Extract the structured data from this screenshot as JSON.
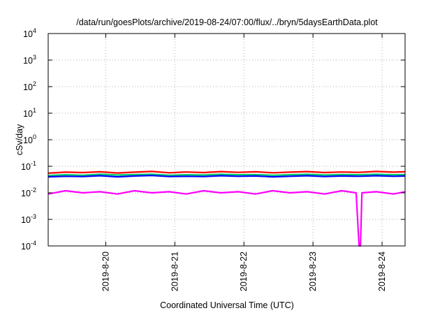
{
  "chart_data": {
    "type": "line",
    "title": "/data/run/goesPlots/archive/2019-08-24/07:00/flux/../bryn/5daysEarthData.plot",
    "xlabel": "Coordinated Universal Time (UTC)",
    "ylabel": "cSv/day",
    "yscale": "log",
    "ylim": [
      0.0001,
      10000
    ],
    "xlim": [
      "2019-08-19T04:00",
      "2019-08-24T08:00"
    ],
    "grid": true,
    "legend": "none",
    "y_ticks": [
      {
        "value": 0.0001,
        "base": "10",
        "exp": "-4"
      },
      {
        "value": 0.001,
        "base": "10",
        "exp": "-3"
      },
      {
        "value": 0.01,
        "base": "10",
        "exp": "-2"
      },
      {
        "value": 0.1,
        "base": "10",
        "exp": "-1"
      },
      {
        "value": 1,
        "base": "10",
        "exp": "0"
      },
      {
        "value": 10,
        "base": "10",
        "exp": "1"
      },
      {
        "value": 100,
        "base": "10",
        "exp": "2"
      },
      {
        "value": 1000,
        "base": "10",
        "exp": "3"
      },
      {
        "value": 10000,
        "base": "10",
        "exp": "4"
      }
    ],
    "x_ticks": [
      {
        "value": "2019-08-20T00:00",
        "label": "2019-8-20"
      },
      {
        "value": "2019-08-21T00:00",
        "label": "2019-8-21"
      },
      {
        "value": "2019-08-22T00:00",
        "label": "2019-8-22"
      },
      {
        "value": "2019-08-23T00:00",
        "label": "2019-8-23"
      },
      {
        "value": "2019-08-24T00:00",
        "label": "2019-8-24"
      }
    ],
    "series": [
      {
        "color": "#ff0000",
        "values": [
          [
            "2019-08-19T04:00",
            0.055
          ],
          [
            "2019-08-19T10:00",
            0.06
          ],
          [
            "2019-08-19T16:00",
            0.058
          ],
          [
            "2019-08-19T22:00",
            0.062
          ],
          [
            "2019-08-20T04:00",
            0.056
          ],
          [
            "2019-08-20T10:00",
            0.06
          ],
          [
            "2019-08-20T16:00",
            0.064
          ],
          [
            "2019-08-20T22:00",
            0.057
          ],
          [
            "2019-08-21T04:00",
            0.061
          ],
          [
            "2019-08-21T10:00",
            0.058
          ],
          [
            "2019-08-21T16:00",
            0.063
          ],
          [
            "2019-08-21T22:00",
            0.059
          ],
          [
            "2019-08-22T04:00",
            0.062
          ],
          [
            "2019-08-22T10:00",
            0.057
          ],
          [
            "2019-08-22T16:00",
            0.06
          ],
          [
            "2019-08-22T22:00",
            0.063
          ],
          [
            "2019-08-23T04:00",
            0.058
          ],
          [
            "2019-08-23T10:00",
            0.061
          ],
          [
            "2019-08-23T16:00",
            0.059
          ],
          [
            "2019-08-23T22:00",
            0.064
          ],
          [
            "2019-08-24T04:00",
            0.06
          ],
          [
            "2019-08-24T08:00",
            0.062
          ]
        ]
      },
      {
        "color": "#00cc66",
        "values": [
          [
            "2019-08-19T04:00",
            0.045
          ],
          [
            "2019-08-19T10:00",
            0.048
          ],
          [
            "2019-08-19T16:00",
            0.046
          ],
          [
            "2019-08-19T22:00",
            0.05
          ],
          [
            "2019-08-20T04:00",
            0.047
          ],
          [
            "2019-08-20T10:00",
            0.049
          ],
          [
            "2019-08-20T16:00",
            0.05
          ],
          [
            "2019-08-20T22:00",
            0.046
          ],
          [
            "2019-08-21T04:00",
            0.048
          ],
          [
            "2019-08-21T10:00",
            0.047
          ],
          [
            "2019-08-21T16:00",
            0.05
          ],
          [
            "2019-08-21T22:00",
            0.048
          ],
          [
            "2019-08-22T04:00",
            0.049
          ],
          [
            "2019-08-22T10:00",
            0.046
          ],
          [
            "2019-08-22T16:00",
            0.048
          ],
          [
            "2019-08-22T22:00",
            0.05
          ],
          [
            "2019-08-23T04:00",
            0.047
          ],
          [
            "2019-08-23T10:00",
            0.049
          ],
          [
            "2019-08-23T16:00",
            0.048
          ],
          [
            "2019-08-23T22:00",
            0.05
          ],
          [
            "2019-08-24T04:00",
            0.048
          ],
          [
            "2019-08-24T08:00",
            0.049
          ]
        ]
      },
      {
        "color": "#0000ff",
        "values": [
          [
            "2019-08-19T04:00",
            0.04
          ],
          [
            "2019-08-19T10:00",
            0.042
          ],
          [
            "2019-08-19T16:00",
            0.041
          ],
          [
            "2019-08-19T22:00",
            0.044
          ],
          [
            "2019-08-20T04:00",
            0.04
          ],
          [
            "2019-08-20T10:00",
            0.043
          ],
          [
            "2019-08-20T16:00",
            0.045
          ],
          [
            "2019-08-20T22:00",
            0.041
          ],
          [
            "2019-08-21T04:00",
            0.042
          ],
          [
            "2019-08-21T10:00",
            0.041
          ],
          [
            "2019-08-21T16:00",
            0.044
          ],
          [
            "2019-08-21T22:00",
            0.042
          ],
          [
            "2019-08-22T04:00",
            0.043
          ],
          [
            "2019-08-22T10:00",
            0.04
          ],
          [
            "2019-08-22T16:00",
            0.042
          ],
          [
            "2019-08-22T22:00",
            0.044
          ],
          [
            "2019-08-23T04:00",
            0.041
          ],
          [
            "2019-08-23T10:00",
            0.043
          ],
          [
            "2019-08-23T16:00",
            0.042
          ],
          [
            "2019-08-23T22:00",
            0.044
          ],
          [
            "2019-08-24T04:00",
            0.042
          ],
          [
            "2019-08-24T08:00",
            0.043
          ]
        ]
      },
      {
        "color": "#ff00ff",
        "values": [
          [
            "2019-08-19T04:00",
            0.009
          ],
          [
            "2019-08-19T10:00",
            0.012
          ],
          [
            "2019-08-19T16:00",
            0.01
          ],
          [
            "2019-08-19T22:00",
            0.011
          ],
          [
            "2019-08-20T04:00",
            0.009
          ],
          [
            "2019-08-20T10:00",
            0.012
          ],
          [
            "2019-08-20T16:00",
            0.01
          ],
          [
            "2019-08-20T22:00",
            0.011
          ],
          [
            "2019-08-21T04:00",
            0.009
          ],
          [
            "2019-08-21T10:00",
            0.012
          ],
          [
            "2019-08-21T16:00",
            0.01
          ],
          [
            "2019-08-21T22:00",
            0.011
          ],
          [
            "2019-08-22T04:00",
            0.009
          ],
          [
            "2019-08-22T10:00",
            0.012
          ],
          [
            "2019-08-22T16:00",
            0.01
          ],
          [
            "2019-08-22T22:00",
            0.011
          ],
          [
            "2019-08-23T04:00",
            0.009
          ],
          [
            "2019-08-23T10:00",
            0.012
          ],
          [
            "2019-08-23T15:00",
            0.01
          ],
          [
            "2019-08-23T16:00",
            0.0001
          ],
          [
            "2019-08-23T16:30",
            0.0001
          ],
          [
            "2019-08-23T17:00",
            0.01
          ],
          [
            "2019-08-23T22:00",
            0.011
          ],
          [
            "2019-08-24T04:00",
            0.009
          ],
          [
            "2019-08-24T08:00",
            0.011
          ]
        ]
      }
    ]
  }
}
